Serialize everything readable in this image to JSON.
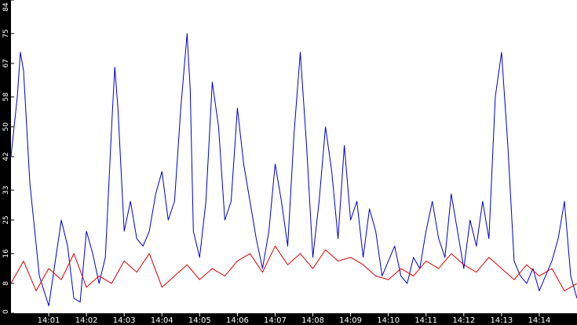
{
  "chart_data": {
    "type": "line",
    "title": "",
    "xlabel": "",
    "ylabel": "",
    "ylim": [
      0,
      84
    ],
    "xlim": [
      "14:00:00",
      "14:15:00"
    ],
    "y_ticks": [
      "0",
      "8",
      "16",
      "25",
      "33",
      "42",
      "50",
      "58",
      "67",
      "75",
      "84"
    ],
    "x_ticks": [
      "14:01",
      "14:02",
      "14:03",
      "14:04",
      "14:05",
      "14:06",
      "14:07",
      "14:08",
      "14:09",
      "14:10",
      "14:11",
      "14:12",
      "14:13",
      "14:14"
    ],
    "grid": false,
    "legend": "none",
    "background": "#ffffff",
    "axis_band_color": "#000000",
    "series": [
      {
        "color": "#0000cc",
        "x": [
          "14:00:00",
          "14:00:10",
          "14:00:15",
          "14:00:20",
          "14:00:30",
          "14:00:45",
          "14:01:00",
          "14:01:20",
          "14:01:30",
          "14:01:40",
          "14:01:50",
          "14:02:00",
          "14:02:10",
          "14:02:20",
          "14:02:30",
          "14:02:40",
          "14:02:45",
          "14:02:50",
          "14:03:00",
          "14:03:10",
          "14:03:20",
          "14:03:30",
          "14:03:40",
          "14:03:50",
          "14:04:00",
          "14:04:10",
          "14:04:20",
          "14:04:30",
          "14:04:40",
          "14:04:45",
          "14:04:50",
          "14:05:00",
          "14:05:10",
          "14:05:20",
          "14:05:30",
          "14:05:40",
          "14:05:50",
          "14:06:00",
          "14:06:10",
          "14:06:20",
          "14:06:30",
          "14:06:40",
          "14:06:50",
          "14:07:00",
          "14:07:10",
          "14:07:20",
          "14:07:30",
          "14:07:40",
          "14:07:50",
          "14:08:00",
          "14:08:10",
          "14:08:20",
          "14:08:30",
          "14:08:40",
          "14:08:50",
          "14:09:00",
          "14:09:10",
          "14:09:20",
          "14:09:30",
          "14:09:40",
          "14:09:50",
          "14:10:00",
          "14:10:10",
          "14:10:20",
          "14:10:30",
          "14:10:40",
          "14:10:50",
          "14:11:00",
          "14:11:10",
          "14:11:20",
          "14:11:30",
          "14:11:40",
          "14:11:50",
          "14:12:00",
          "14:12:10",
          "14:12:20",
          "14:12:30",
          "14:12:40",
          "14:12:50",
          "14:13:00",
          "14:13:10",
          "14:13:20",
          "14:13:30",
          "14:13:40",
          "14:13:50",
          "14:14:00",
          "14:14:10",
          "14:14:20",
          "14:14:30",
          "14:14:40",
          "14:14:50",
          "14:15:00"
        ],
        "values": [
          42,
          58,
          70,
          65,
          35,
          10,
          2,
          25,
          18,
          4,
          3,
          22,
          16,
          8,
          15,
          50,
          66,
          55,
          22,
          30,
          20,
          18,
          22,
          32,
          38,
          25,
          30,
          55,
          75,
          60,
          22,
          15,
          30,
          62,
          50,
          25,
          30,
          55,
          40,
          30,
          20,
          12,
          22,
          40,
          30,
          18,
          48,
          70,
          45,
          15,
          30,
          50,
          38,
          20,
          45,
          25,
          30,
          15,
          28,
          22,
          10,
          14,
          18,
          10,
          8,
          15,
          12,
          22,
          30,
          20,
          15,
          32,
          22,
          12,
          25,
          18,
          30,
          20,
          58,
          70,
          45,
          14,
          10,
          8,
          12,
          6,
          10,
          14,
          20,
          30,
          10,
          4
        ]
      },
      {
        "color": "#dd0000",
        "x": [
          "14:00:00",
          "14:00:20",
          "14:00:40",
          "14:01:00",
          "14:01:20",
          "14:01:40",
          "14:02:00",
          "14:02:20",
          "14:02:40",
          "14:03:00",
          "14:03:20",
          "14:03:40",
          "14:04:00",
          "14:04:20",
          "14:04:40",
          "14:05:00",
          "14:05:20",
          "14:05:40",
          "14:06:00",
          "14:06:20",
          "14:06:40",
          "14:07:00",
          "14:07:20",
          "14:07:40",
          "14:08:00",
          "14:08:20",
          "14:08:40",
          "14:09:00",
          "14:09:20",
          "14:09:40",
          "14:10:00",
          "14:10:20",
          "14:10:40",
          "14:11:00",
          "14:11:20",
          "14:11:40",
          "14:12:00",
          "14:12:20",
          "14:12:40",
          "14:13:00",
          "14:13:20",
          "14:13:40",
          "14:14:00",
          "14:14:20",
          "14:14:40",
          "14:15:00"
        ],
        "values": [
          8,
          14,
          6,
          12,
          9,
          16,
          7,
          10,
          8,
          14,
          11,
          16,
          7,
          10,
          13,
          9,
          12,
          10,
          14,
          16,
          11,
          18,
          13,
          16,
          12,
          17,
          14,
          15,
          13,
          10,
          9,
          12,
          10,
          14,
          12,
          16,
          13,
          11,
          15,
          12,
          9,
          13,
          10,
          12,
          6,
          8
        ]
      }
    ]
  }
}
